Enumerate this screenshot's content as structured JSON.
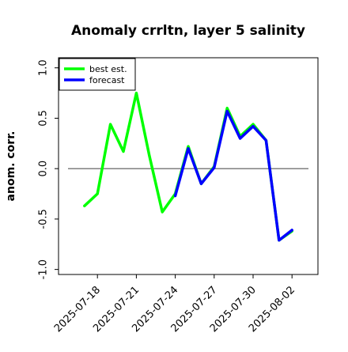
{
  "chart_data": {
    "type": "line",
    "title": "Anomaly crrltn, layer 5 salinity",
    "xlabel": "",
    "ylabel": "anom. corr.",
    "ylim": [
      -1.05,
      1.1
    ],
    "yticks": [
      -1.0,
      -0.5,
      0.0,
      0.5,
      1.0
    ],
    "ytick_labels": [
      "-1.0",
      "-0.5",
      "0.0",
      "0.5",
      "1.0"
    ],
    "xlim": [
      "2025-07-15",
      "2025-08-04"
    ],
    "xticks": [
      "2025-07-18",
      "2025-07-21",
      "2025-07-24",
      "2025-07-27",
      "2025-07-30",
      "2025-08-02"
    ],
    "highlight_tick": "2025-07-24",
    "highlight_color": "#228b22",
    "zero_line": true,
    "grid": false,
    "legend_position": "top-left",
    "series": [
      {
        "name": "best est.",
        "color": "#00ff00",
        "x": [
          "2025-07-17",
          "2025-07-18",
          "2025-07-19",
          "2025-07-20",
          "2025-07-21",
          "2025-07-22",
          "2025-07-23",
          "2025-07-24",
          "2025-07-25",
          "2025-07-26",
          "2025-07-27",
          "2025-07-28",
          "2025-07-29",
          "2025-07-30",
          "2025-07-31",
          "2025-08-01",
          "2025-08-02"
        ],
        "values": [
          -0.37,
          -0.25,
          0.44,
          0.17,
          0.75,
          0.13,
          -0.43,
          -0.25,
          0.22,
          -0.15,
          0.02,
          0.6,
          0.32,
          0.44,
          0.28,
          -0.71,
          -0.62
        ]
      },
      {
        "name": "forecast",
        "color": "#0000ff",
        "x": [
          "2025-07-24",
          "2025-07-25",
          "2025-07-26",
          "2025-07-27",
          "2025-07-28",
          "2025-07-29",
          "2025-07-30",
          "2025-07-31",
          "2025-08-01",
          "2025-08-02"
        ],
        "values": [
          -0.27,
          0.2,
          -0.15,
          0.01,
          0.57,
          0.3,
          0.42,
          0.28,
          -0.71,
          -0.61
        ]
      }
    ]
  }
}
